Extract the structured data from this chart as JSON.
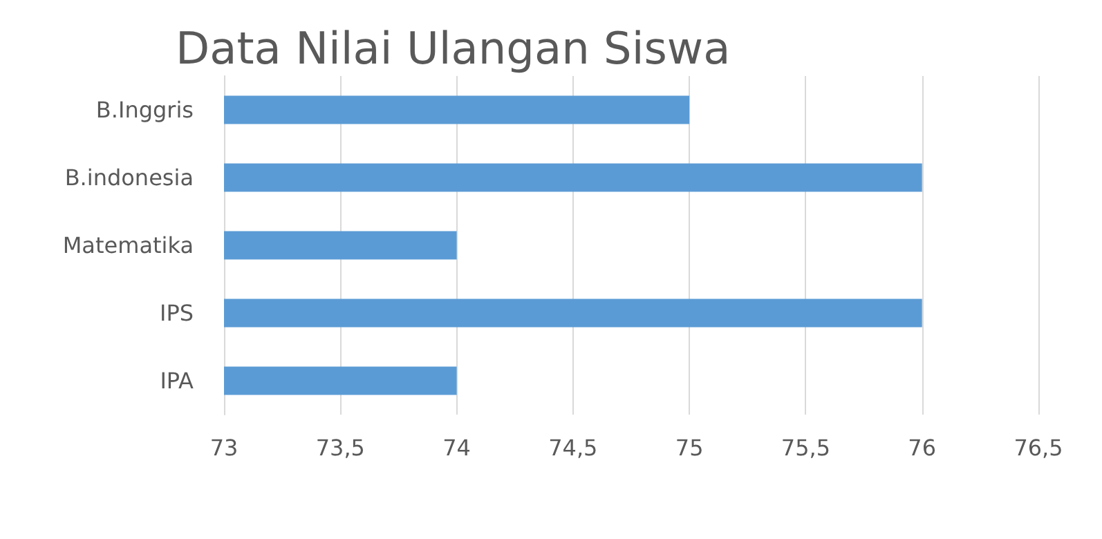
{
  "chart_data": {
    "type": "bar",
    "orientation": "horizontal",
    "title": "Data Nilai Ulangan Siswa",
    "categories": [
      "B.Inggris",
      "B.indonesia",
      "Matematika",
      "IPS",
      "IPA"
    ],
    "values": [
      75,
      76,
      74,
      76,
      74
    ],
    "color": "#5b9bd5",
    "xlim": [
      73,
      76.5
    ],
    "xticks": [
      73,
      {
        "value": 73.5,
        "label": "73,5"
      },
      74,
      {
        "value": 74.5,
        "label": "74,5"
      },
      75,
      {
        "value": 75.5,
        "label": "75,5"
      },
      76,
      {
        "value": 76.5,
        "label": "76,5"
      }
    ],
    "grid": "x"
  }
}
